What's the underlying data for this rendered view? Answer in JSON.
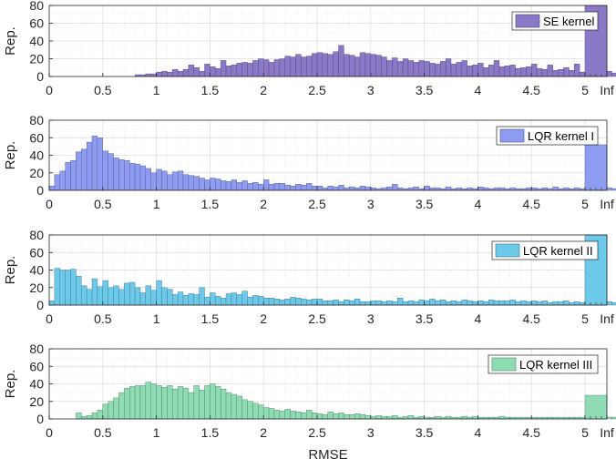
{
  "chart_data": [
    {
      "type": "bar",
      "legend": "SE kernel",
      "color": "#8b79c8",
      "ylabel": "Rep.",
      "xlabel": "",
      "ylim": [
        0,
        80
      ],
      "yticks": [
        "0",
        "20",
        "40",
        "60",
        "80"
      ],
      "xticks": [
        "0",
        "0.5",
        "1",
        "1.5",
        "2",
        "2.5",
        "3",
        "3.5",
        "4",
        "4.5",
        "5",
        "Inf"
      ],
      "bin_width": 0.05,
      "bin_start": 0,
      "values": [
        0,
        0,
        0,
        0,
        0,
        0,
        0,
        0,
        0,
        0,
        0,
        0,
        0,
        0,
        0,
        0,
        2,
        2,
        3,
        3,
        5,
        6,
        5,
        8,
        6,
        8,
        13,
        10,
        6,
        14,
        11,
        9,
        18,
        12,
        13,
        15,
        16,
        15,
        18,
        20,
        19,
        16,
        19,
        20,
        23,
        22,
        25,
        22,
        23,
        26,
        27,
        26,
        25,
        28,
        35,
        25,
        24,
        22,
        27,
        26,
        25,
        24,
        22,
        18,
        21,
        17,
        20,
        18,
        16,
        18,
        17,
        15,
        14,
        17,
        20,
        14,
        16,
        18,
        12,
        13,
        15,
        10,
        13,
        18,
        11,
        12,
        13,
        9,
        10,
        11,
        14,
        9,
        8,
        13,
        7,
        8,
        10,
        7,
        14,
        5,
        6,
        5,
        5,
        4,
        6,
        4,
        5,
        3,
        6,
        4,
        5,
        3,
        3,
        5,
        4,
        4
      ],
      "inf_value": 80
    },
    {
      "type": "bar",
      "legend": "LQR kernel I",
      "color": "#8d9cf0",
      "ylabel": "Rep.",
      "xlabel": "",
      "ylim": [
        0,
        80
      ],
      "yticks": [
        "0",
        "20",
        "40",
        "60",
        "80"
      ],
      "xticks": [
        "0",
        "0.5",
        "1",
        "1.5",
        "2",
        "2.5",
        "3",
        "3.5",
        "4",
        "4.5",
        "5",
        "Inf"
      ],
      "bin_width": 0.05,
      "bin_start": 0,
      "values": [
        5,
        18,
        22,
        32,
        34,
        44,
        47,
        55,
        62,
        60,
        45,
        42,
        37,
        35,
        34,
        31,
        30,
        28,
        25,
        20,
        24,
        22,
        18,
        21,
        22,
        18,
        17,
        16,
        14,
        12,
        14,
        13,
        11,
        10,
        12,
        9,
        11,
        8,
        9,
        7,
        12,
        7,
        8,
        8,
        6,
        5,
        7,
        6,
        8,
        5,
        5,
        3,
        5,
        4,
        6,
        3,
        4,
        3,
        5,
        4,
        3,
        2,
        3,
        4,
        7,
        3,
        2,
        3,
        4,
        2,
        5,
        3,
        3,
        2,
        4,
        2,
        3,
        2,
        3,
        2,
        4,
        3,
        2,
        3,
        3,
        2,
        3,
        2,
        2,
        3,
        3,
        2,
        3,
        2,
        4,
        2,
        3,
        2,
        3,
        2,
        3,
        2,
        3,
        2,
        3,
        2,
        2,
        2,
        2,
        2,
        2,
        3,
        2,
        3,
        2
      ],
      "inf_value": 52
    },
    {
      "type": "bar",
      "legend": "LQR kernel II",
      "color": "#6cc9ea",
      "ylabel": "Rep.",
      "xlabel": "",
      "ylim": [
        0,
        80
      ],
      "yticks": [
        "0",
        "20",
        "40",
        "60",
        "80"
      ],
      "xticks": [
        "0",
        "0.5",
        "1",
        "1.5",
        "2",
        "2.5",
        "3",
        "3.5",
        "4",
        "4.5",
        "5",
        "Inf"
      ],
      "bin_width": 0.05,
      "bin_start": 0,
      "values": [
        5,
        42,
        40,
        40,
        41,
        33,
        22,
        18,
        30,
        21,
        28,
        20,
        22,
        18,
        25,
        26,
        20,
        14,
        22,
        17,
        28,
        20,
        18,
        12,
        15,
        11,
        13,
        12,
        20,
        9,
        14,
        10,
        8,
        13,
        14,
        12,
        16,
        9,
        11,
        10,
        8,
        8,
        7,
        6,
        7,
        9,
        8,
        7,
        6,
        7,
        7,
        5,
        5,
        6,
        4,
        6,
        5,
        7,
        4,
        4,
        5,
        5,
        4,
        5,
        4,
        8,
        4,
        5,
        4,
        6,
        5,
        7,
        5,
        6,
        4,
        5,
        4,
        6,
        5,
        4,
        5,
        4,
        6,
        5,
        5,
        5,
        6,
        4,
        5,
        4,
        5,
        4,
        5,
        3,
        4,
        4,
        5,
        3,
        4,
        3,
        4,
        3,
        4,
        3,
        4,
        3,
        4,
        3,
        4,
        3,
        4,
        3,
        4,
        3,
        4
      ],
      "inf_value": 80
    },
    {
      "type": "bar",
      "legend": "LQR kernel III",
      "color": "#8fdcb4",
      "ylabel": "Rep.",
      "xlabel": "RMSE",
      "ylim": [
        0,
        80
      ],
      "yticks": [
        "0",
        "20",
        "40",
        "60",
        "80"
      ],
      "xticks": [
        "0",
        "0.5",
        "1",
        "1.5",
        "2",
        "2.5",
        "3",
        "3.5",
        "4",
        "4.5",
        "5",
        "Inf"
      ],
      "bin_width": 0.05,
      "bin_start": 0,
      "values": [
        0,
        0,
        0,
        0,
        0,
        7,
        3,
        4,
        7,
        10,
        17,
        20,
        24,
        30,
        35,
        37,
        38,
        38,
        42,
        40,
        38,
        36,
        38,
        34,
        37,
        35,
        30,
        38,
        33,
        38,
        40,
        37,
        34,
        30,
        28,
        26,
        22,
        20,
        18,
        16,
        13,
        12,
        10,
        9,
        11,
        9,
        8,
        7,
        10,
        7,
        6,
        5,
        8,
        6,
        7,
        5,
        5,
        6,
        5,
        4,
        3,
        4,
        3,
        3,
        4,
        2,
        3,
        4,
        2,
        3,
        2,
        2,
        3,
        2,
        3,
        2,
        2,
        3,
        2,
        3,
        2,
        2,
        2,
        2,
        3,
        2,
        2,
        2,
        2,
        2,
        2,
        2,
        2,
        2,
        2,
        2,
        2,
        2,
        2,
        2,
        2,
        2,
        2,
        2,
        2,
        2,
        2,
        2,
        2,
        2,
        2,
        2,
        2,
        2,
        2
      ],
      "inf_value": 27
    }
  ]
}
